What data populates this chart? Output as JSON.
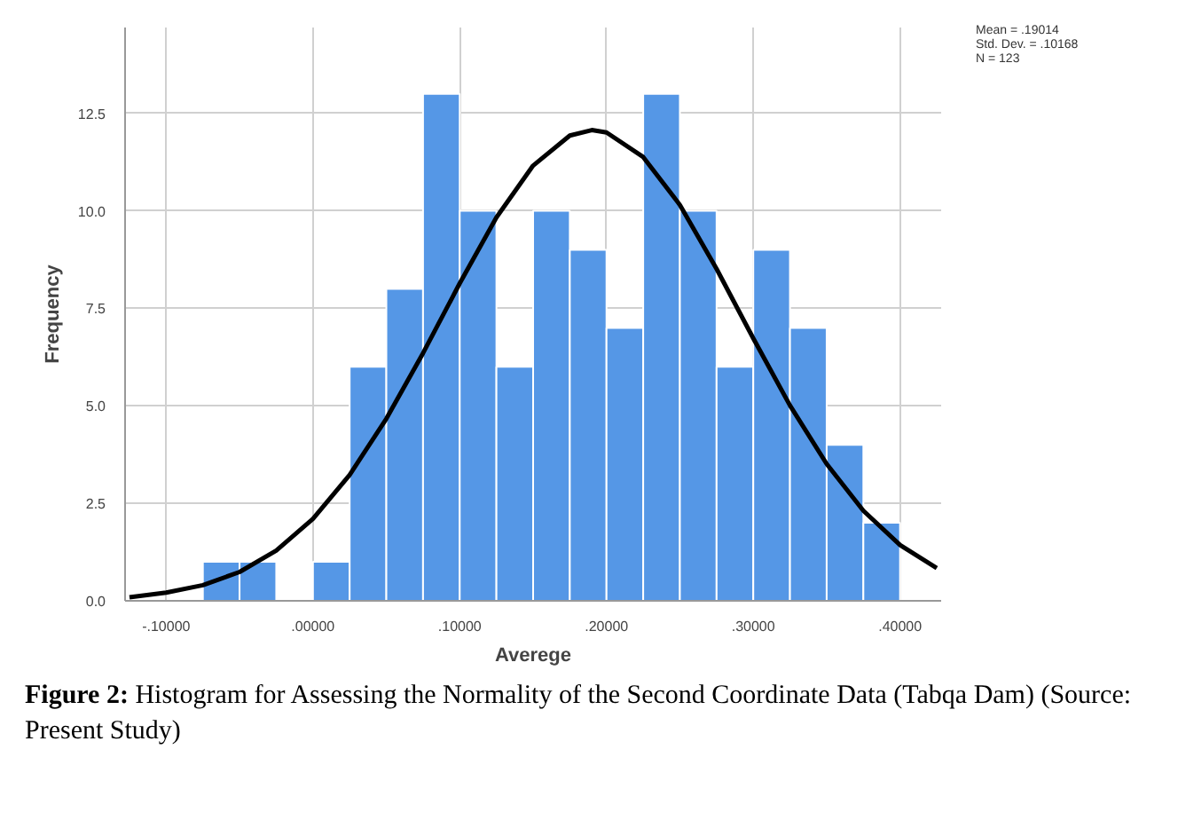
{
  "chart_data": {
    "type": "histogram",
    "xlabel": "Averege",
    "ylabel": "Frequency",
    "bins": [
      -0.075,
      -0.05,
      -0.025,
      0,
      0.025,
      0.05,
      0.075,
      0.1,
      0.125,
      0.15,
      0.175,
      0.2,
      0.225,
      0.25,
      0.275,
      0.3,
      0.325,
      0.35,
      0.375,
      0.4
    ],
    "values": [
      1,
      1,
      0,
      1,
      6,
      8,
      13,
      10,
      6,
      10,
      9,
      7,
      13,
      10,
      6,
      9,
      7,
      4,
      2
    ],
    "color": "#5597e6",
    "series": [
      {
        "type": "line",
        "color": "#000000",
        "x": [
          -0.125,
          -0.1,
          -0.075,
          -0.05,
          -0.025,
          0,
          0.025,
          0.05,
          0.075,
          0.1,
          0.125,
          0.15,
          0.175,
          0.19,
          0.2,
          0.225,
          0.25,
          0.275,
          0.3,
          0.325,
          0.35,
          0.375,
          0.4,
          0.425
        ],
        "values": [
          0.09,
          0.21,
          0.4,
          0.74,
          1.29,
          2.1,
          3.23,
          4.67,
          6.35,
          8.14,
          9.83,
          11.16,
          11.93,
          12.07,
          12.01,
          11.38,
          10.15,
          8.51,
          6.73,
          5.01,
          3.51,
          2.31,
          1.43,
          0.84
        ]
      }
    ],
    "xlim": [
      -0.128,
      0.428
    ],
    "ylim": [
      0,
      14.7
    ],
    "xticks": [
      {
        "value": -0.1,
        "label": "-.10000"
      },
      {
        "value": 0,
        "label": ".00000"
      },
      {
        "value": 0.1,
        "label": ".10000"
      },
      {
        "value": 0.2,
        "label": ".20000"
      },
      {
        "value": 0.3,
        "label": ".30000"
      },
      {
        "value": 0.4,
        "label": ".40000"
      }
    ],
    "yticks": [
      {
        "value": 0,
        "label": "0.0"
      },
      {
        "value": 2.5,
        "label": "2.5"
      },
      {
        "value": 5,
        "label": "5.0"
      },
      {
        "value": 7.5,
        "label": "7.5"
      },
      {
        "value": 10,
        "label": "10.0"
      },
      {
        "value": 12.5,
        "label": "12.5"
      }
    ],
    "grid": true,
    "annotations": [
      "Mean = .19014",
      "Std. Dev. = .10168",
      "N = 123",
      "Figure 2: Histogram for Assessing the Normality of the Second Coordinate Data (Tabqa Dam) (Source: Present Study)"
    ]
  }
}
